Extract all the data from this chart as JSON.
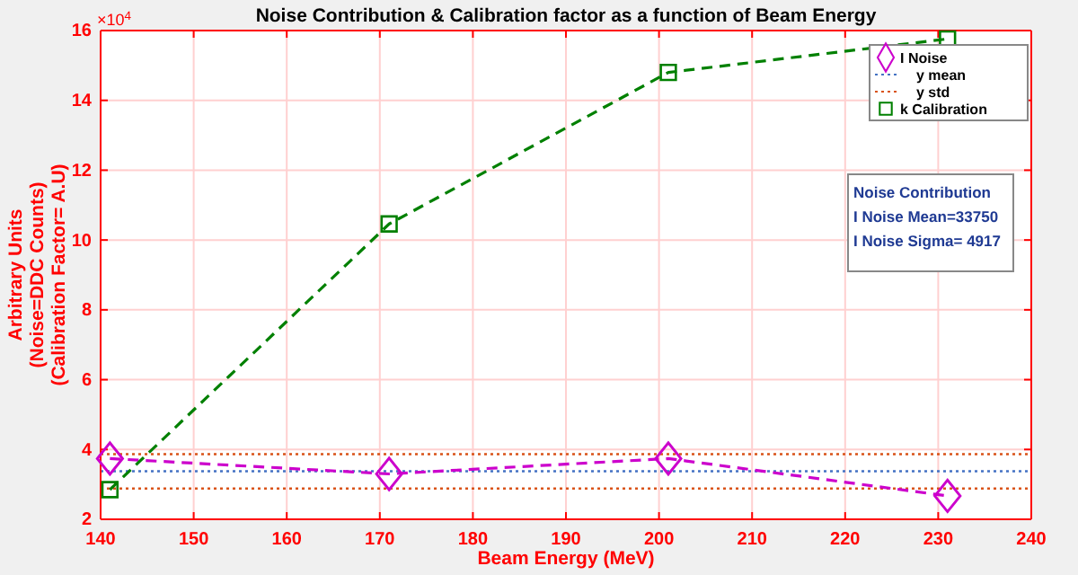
{
  "chart_data": {
    "type": "line",
    "title": "Noise Contribution & Calibration factor as a function of Beam Energy",
    "xlabel": "Beam Energy (MeV)",
    "ylabel": "Arbitrary Units\n(Noise=DDC Counts)\n(Calibration Factor= A.U)",
    "x": [
      141,
      171,
      201,
      231
    ],
    "series": [
      {
        "name": "I Noise",
        "color": "#cc00cc",
        "values": [
          3.74,
          3.3,
          3.74,
          2.67
        ],
        "marker": "diamond"
      },
      {
        "name": "k Calibration",
        "color": "#008000",
        "values": [
          2.85,
          10.46,
          14.8,
          15.76
        ],
        "marker": "square"
      }
    ],
    "line_style": "dashed",
    "ref_lines": [
      {
        "axis": "y",
        "value": 3.375,
        "label": "y mean",
        "color": "#4472c4",
        "line_style": "dotted"
      },
      {
        "axis": "y",
        "value": 3.867,
        "label": "y std",
        "color": "#d95319",
        "line_style": "dotted"
      },
      {
        "axis": "y",
        "value": 2.883,
        "color": "#d95319",
        "line_style": "dotted"
      }
    ],
    "xlim": [
      140,
      240
    ],
    "xticks": [
      140,
      150,
      160,
      170,
      180,
      190,
      200,
      210,
      220,
      230,
      240
    ],
    "ylim": [
      2,
      16
    ],
    "yticks": [
      2,
      4,
      6,
      8,
      10,
      12,
      14,
      16
    ],
    "grid": true,
    "legend": "top right",
    "annotations": [
      "×10$^{4}$",
      "Noise Contribution",
      "I Noise Mean=33750",
      "I Noise Sigma= 4917"
    ]
  }
}
